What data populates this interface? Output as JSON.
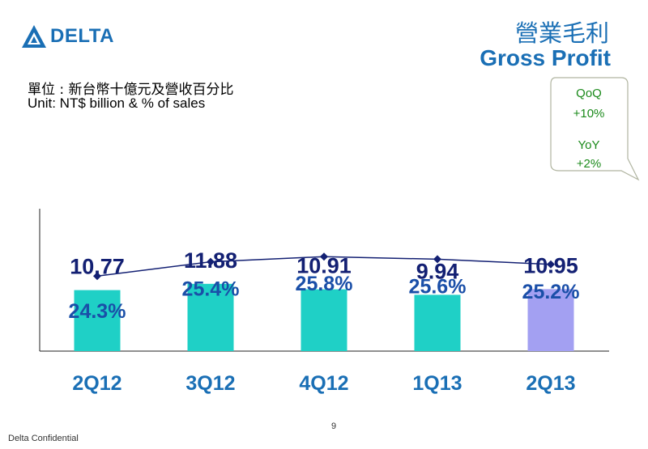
{
  "header": {
    "logo_text": "DELTA",
    "title_zh": "營業毛利",
    "title_en": "Gross Profit",
    "unit_zh": "單位 : 新台幣十億元及營收百分比",
    "unit_en": "Unit: NT$ billion & % of sales"
  },
  "callout": {
    "qoq_label": "QoQ",
    "qoq_value": "+10%",
    "yoy_label": "YoY",
    "yoy_value": "+2%"
  },
  "colors": {
    "accent": "#1a6fb5",
    "bar": "#1fd0c6",
    "bar_highlight": "#a3a0f2",
    "value_label": "#132073",
    "percent_label": "#1a4fa8",
    "line": "#132073",
    "callout_text": "#1b8a1b"
  },
  "chart_data": {
    "type": "bar",
    "categories": [
      "2Q12",
      "3Q12",
      "4Q12",
      "1Q13",
      "2Q13"
    ],
    "values": [
      10.77,
      11.88,
      10.91,
      9.94,
      10.95
    ],
    "value_labels": [
      "10.77",
      "11.88",
      "10.91",
      "9.94",
      "10.95"
    ],
    "line_series": {
      "values": [
        24.3,
        25.4,
        25.8,
        25.6,
        25.2
      ],
      "labels": [
        "24.3%",
        "25.4%",
        "25.8%",
        "25.6%",
        "25.2%"
      ]
    },
    "highlight_index": 4,
    "ylim": [
      0,
      25
    ],
    "grid": false
  },
  "footer": {
    "confidential": "Delta Confidential",
    "page_number": "9"
  }
}
